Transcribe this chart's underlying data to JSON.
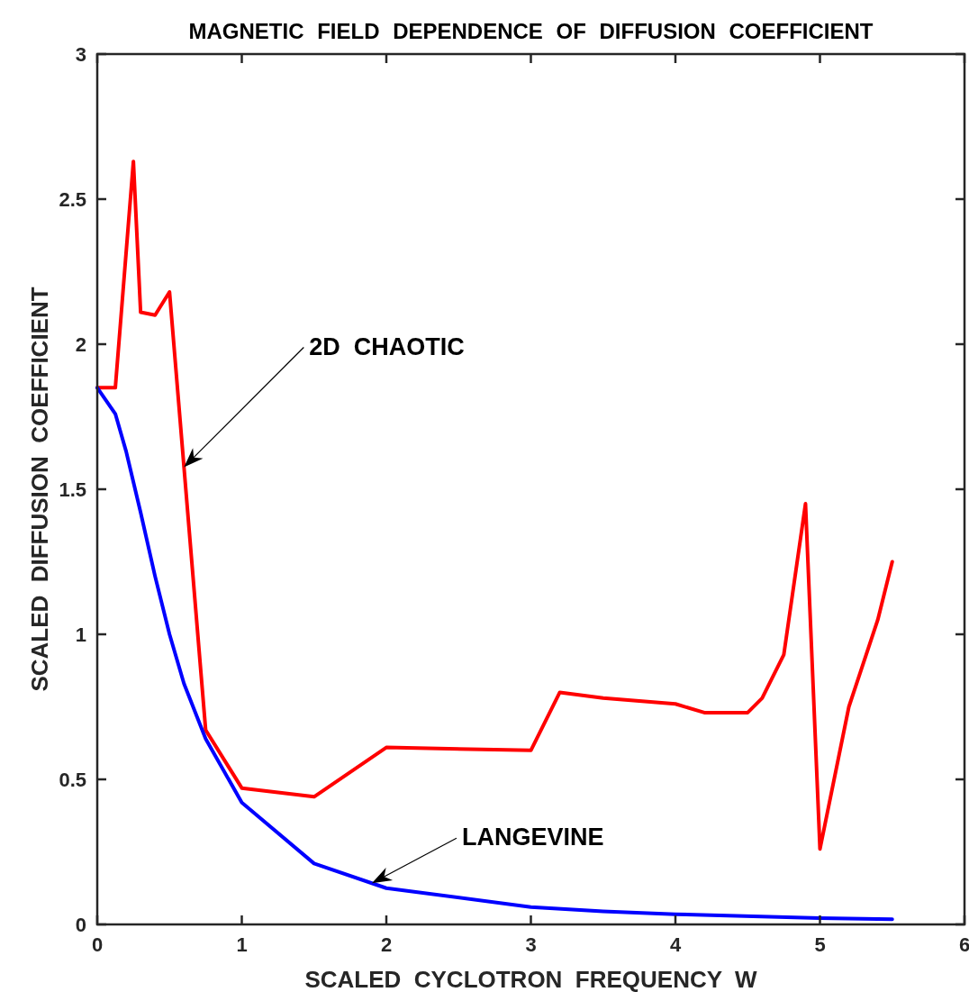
{
  "chart_data": {
    "type": "line",
    "title": "MAGNETIC FIELD DEPENDENCE OF DIFFUSION COEFFICIENT",
    "xlabel": "SCALED  CYCLOTRON  FREQUENCY  W",
    "ylabel": "SCALED  DIFFUSION  COEFFICIENT",
    "xlim": [
      0,
      6
    ],
    "xticks": [
      0,
      1,
      2,
      3,
      4,
      5,
      6
    ],
    "ylim": [
      0,
      3
    ],
    "yticks": [
      0,
      0.5,
      1,
      1.5,
      2,
      2.5,
      3
    ],
    "grid": false,
    "line_style": "solid",
    "annotations": [
      "2D  CHAOTIC",
      "LANGEVINE"
    ],
    "series": [
      {
        "color": "#ff0000",
        "x": [
          0,
          0.125,
          0.25,
          0.3,
          0.4,
          0.5,
          0.75,
          1,
          1.5,
          2,
          3,
          3.2,
          3.5,
          4,
          4.2,
          4.5,
          4.6,
          4.75,
          4.9,
          5,
          5.2,
          5.4,
          5.5
        ],
        "values": [
          1.85,
          1.85,
          2.63,
          2.11,
          2.1,
          2.18,
          0.67,
          0.47,
          0.44,
          0.61,
          0.6,
          0.8,
          0.78,
          0.76,
          0.73,
          0.73,
          0.78,
          0.93,
          1.45,
          0.26,
          0.75,
          1.05,
          1.25
        ]
      },
      {
        "color": "#0000ff",
        "x": [
          0,
          0.125,
          0.2,
          0.3,
          0.4,
          0.5,
          0.6,
          0.75,
          1,
          1.5,
          2,
          3,
          3.5,
          4,
          5,
          5.5
        ],
        "values": [
          1.85,
          1.76,
          1.63,
          1.42,
          1.2,
          1.0,
          0.83,
          0.64,
          0.42,
          0.21,
          0.125,
          0.06,
          0.045,
          0.035,
          0.022,
          0.018
        ]
      }
    ]
  }
}
